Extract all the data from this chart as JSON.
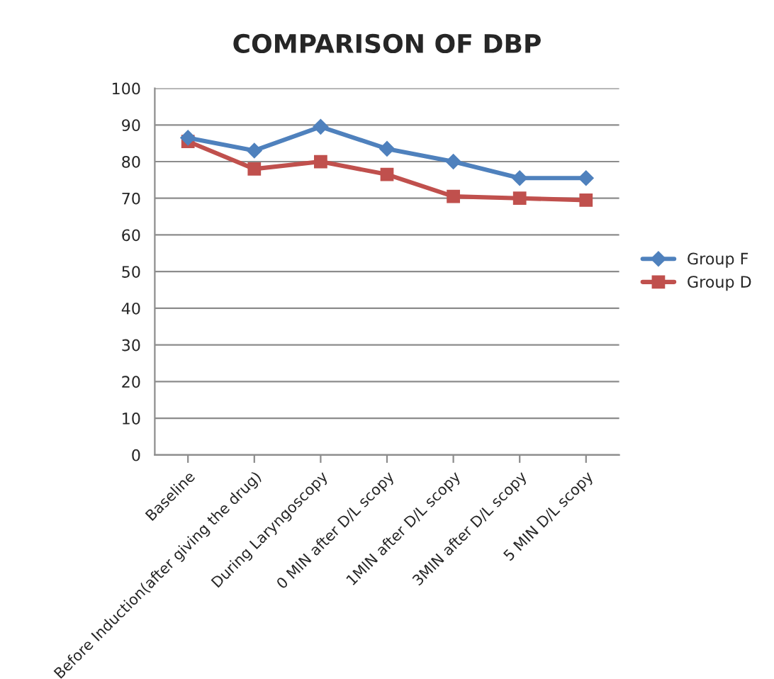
{
  "chart_data": {
    "type": "line",
    "title": "COMPARISON OF DBP",
    "categories": [
      "Baseline",
      "Before Induction(after giving the drug)",
      "During Laryngoscopy",
      "0 MIN after D/L scopy",
      "1MIN after D/L scopy",
      "3MIN after D/L scopy",
      "5 MIN D/L scopy"
    ],
    "series": [
      {
        "name": "Group F",
        "color": "#4f81bd",
        "marker": "diamond",
        "values": [
          86.5,
          83,
          89.5,
          83.5,
          80,
          75.5,
          75.5
        ]
      },
      {
        "name": "Group D",
        "color": "#c0504d",
        "marker": "square",
        "values": [
          85.5,
          78,
          80,
          76.5,
          70.5,
          70,
          69.5
        ]
      }
    ],
    "ylim": [
      0,
      100
    ],
    "yticks": [
      0,
      10,
      20,
      30,
      40,
      50,
      60,
      70,
      80,
      90,
      100
    ],
    "grid": "y",
    "legend": "right"
  }
}
